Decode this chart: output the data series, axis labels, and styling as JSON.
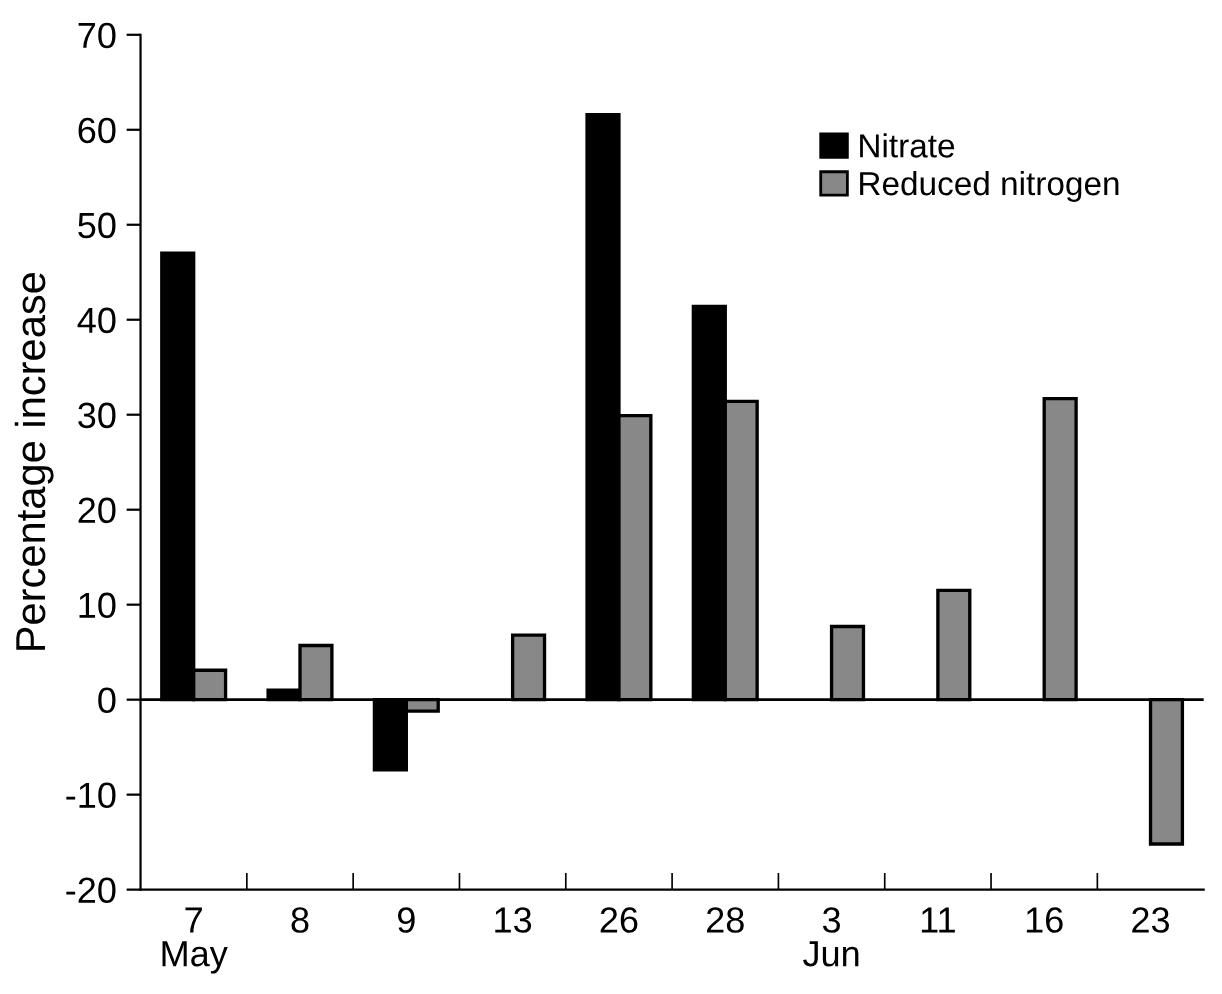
{
  "chart_data": {
    "type": "bar",
    "ylabel": "Percentage increase",
    "categories": [
      "7\nMay",
      "8",
      "9",
      "13",
      "26",
      "28",
      "3\nJun",
      "11",
      "16",
      "23"
    ],
    "series": [
      {
        "name": "Nitrate",
        "color": "#000000",
        "values": [
          47.0,
          1.0,
          -7.4,
          null,
          61.6,
          41.4,
          null,
          null,
          null,
          null
        ]
      },
      {
        "name": "Reduced nitrogen",
        "color": "#888888",
        "values": [
          3.1,
          5.7,
          -1.2,
          6.8,
          29.9,
          31.4,
          7.7,
          11.5,
          31.7,
          -15.2
        ]
      }
    ],
    "ylim": [
      -20,
      70
    ],
    "yticks": [
      -20,
      -10,
      0,
      10,
      20,
      30,
      40,
      50,
      60,
      70
    ],
    "ref_lines": [
      {
        "axis": "y",
        "value": 0,
        "color": "#000000"
      }
    ],
    "grid": false,
    "legend": "top right"
  }
}
